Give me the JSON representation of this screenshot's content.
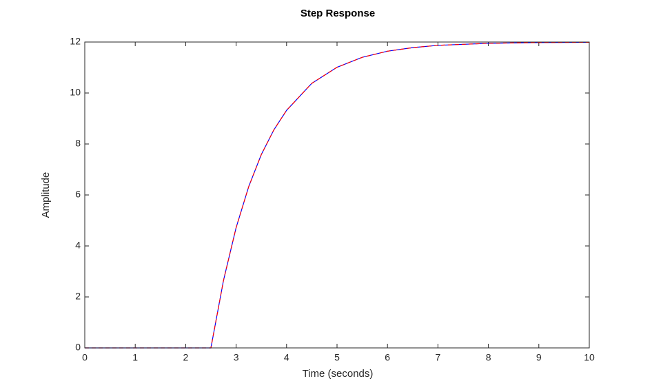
{
  "chart_data": {
    "type": "line",
    "title": "Step Response",
    "x_label": "Time (seconds)",
    "y_label": "Amplitude",
    "x": [
      0,
      2.5,
      2.75,
      3,
      3.25,
      3.5,
      3.75,
      4,
      4.5,
      5,
      5.5,
      6,
      6.5,
      7,
      8,
      9,
      10
    ],
    "series": [
      {
        "color": "#0000ff",
        "line_style": "solid",
        "values": [
          0,
          0,
          2.65,
          4.72,
          6.33,
          7.59,
          8.56,
          9.32,
          10.38,
          11.01,
          11.4,
          11.64,
          11.78,
          11.87,
          11.95,
          11.98,
          11.99
        ]
      },
      {
        "color": "#ff0000",
        "line_style": "dashed",
        "values": [
          0,
          0,
          2.65,
          4.72,
          6.33,
          7.59,
          8.56,
          9.32,
          10.38,
          11.01,
          11.4,
          11.64,
          11.78,
          11.87,
          11.95,
          11.98,
          11.99
        ]
      }
    ],
    "reference_line": {
      "value": 12,
      "color": "#000000",
      "line_style": "dotted"
    },
    "xlim": [
      0,
      10
    ],
    "xticks": [
      0,
      1,
      2,
      3,
      4,
      5,
      6,
      7,
      8,
      9,
      10
    ],
    "ylim": [
      0,
      12
    ],
    "yticks": [
      0,
      2,
      4,
      6,
      8,
      10,
      12
    ],
    "grid": false
  }
}
